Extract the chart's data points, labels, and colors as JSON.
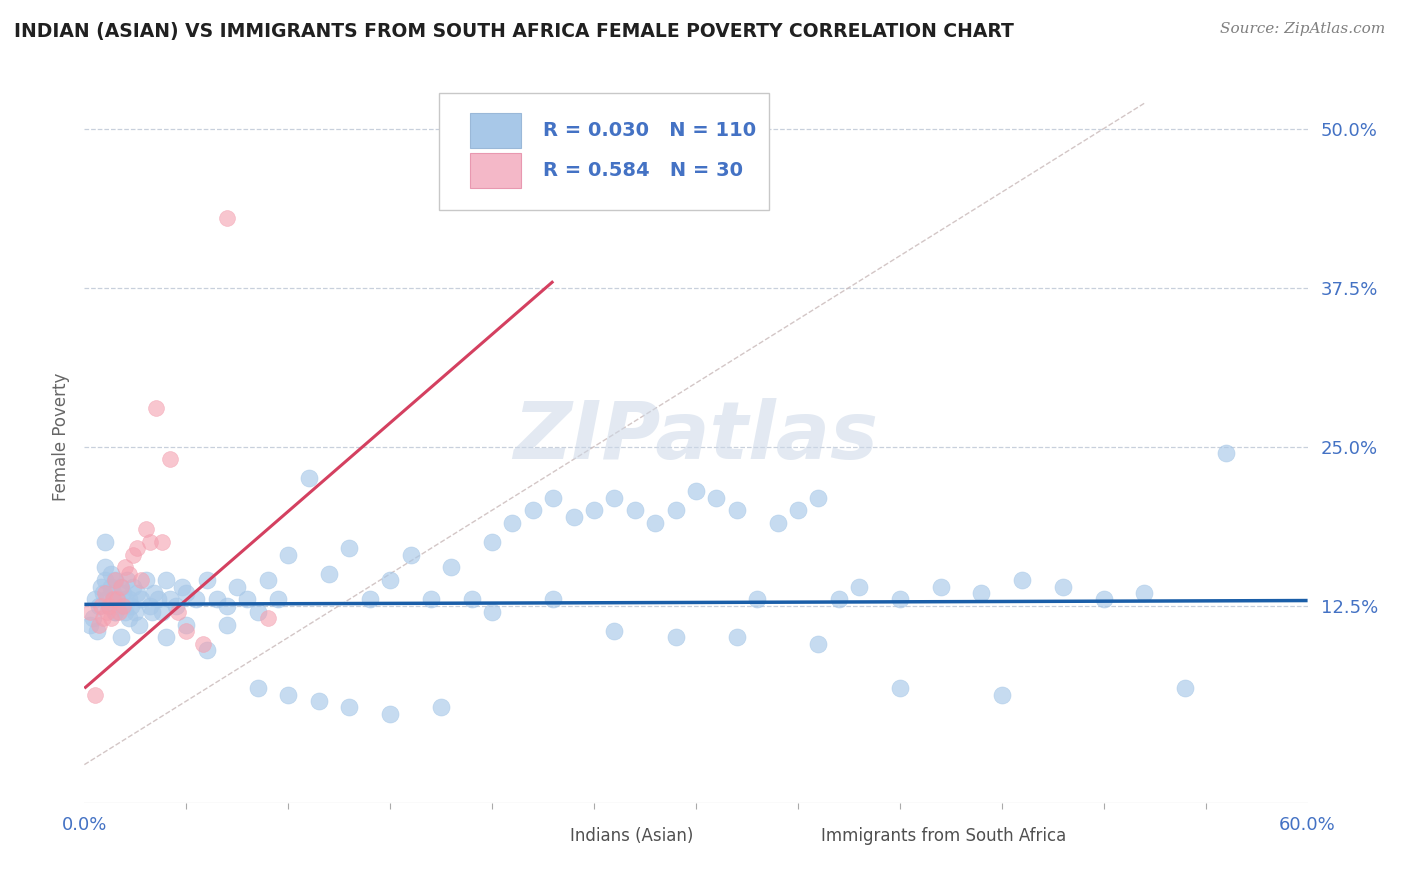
{
  "title": "INDIAN (ASIAN) VS IMMIGRANTS FROM SOUTH AFRICA FEMALE POVERTY CORRELATION CHART",
  "source_text": "Source: ZipAtlas.com",
  "ylabel": "Female Poverty",
  "xlim": [
    0.0,
    0.6
  ],
  "ylim": [
    -0.03,
    0.545
  ],
  "yticks": [
    0.125,
    0.25,
    0.375,
    0.5
  ],
  "ytick_labels": [
    "12.5%",
    "25.0%",
    "37.5%",
    "50.0%"
  ],
  "xticks": [
    0.0,
    0.6
  ],
  "xtick_labels": [
    "0.0%",
    "60.0%"
  ],
  "legend_r1": "R = 0.030",
  "legend_n1": "N = 110",
  "legend_r2": "R = 0.584",
  "legend_n2": "N = 30",
  "color_blue_scatter": "#a8c8e8",
  "color_pink_scatter": "#f4a0b0",
  "color_blue_square": "#a8c8e8",
  "color_pink_square": "#f4b8c8",
  "color_blue_line": "#1a5ea8",
  "color_pink_line": "#d44060",
  "color_diag_line": "#c8b8b8",
  "color_grid": "#c8d0dc",
  "color_title": "#202020",
  "color_source": "#808080",
  "color_tick_labels": "#4472c4",
  "color_legend_text": "#4472c4",
  "color_legend_text2": "#4472c4",
  "color_bottom_legend_text": "#505050",
  "watermark_color": "#ccd8e8",
  "blue_scatter_x": [
    0.005,
    0.007,
    0.008,
    0.009,
    0.01,
    0.01,
    0.01,
    0.011,
    0.012,
    0.013,
    0.013,
    0.014,
    0.015,
    0.015,
    0.016,
    0.017,
    0.018,
    0.019,
    0.02,
    0.02,
    0.021,
    0.022,
    0.023,
    0.024,
    0.025,
    0.026,
    0.028,
    0.03,
    0.032,
    0.034,
    0.036,
    0.038,
    0.04,
    0.042,
    0.045,
    0.048,
    0.05,
    0.055,
    0.06,
    0.065,
    0.07,
    0.075,
    0.08,
    0.085,
    0.09,
    0.095,
    0.1,
    0.11,
    0.12,
    0.13,
    0.14,
    0.15,
    0.16,
    0.17,
    0.18,
    0.19,
    0.2,
    0.21,
    0.22,
    0.23,
    0.24,
    0.25,
    0.26,
    0.27,
    0.28,
    0.29,
    0.3,
    0.31,
    0.32,
    0.33,
    0.34,
    0.35,
    0.36,
    0.37,
    0.38,
    0.4,
    0.42,
    0.44,
    0.46,
    0.48,
    0.5,
    0.52,
    0.54,
    0.56,
    0.003,
    0.004,
    0.006,
    0.015,
    0.018,
    0.022,
    0.027,
    0.033,
    0.04,
    0.05,
    0.06,
    0.07,
    0.085,
    0.1,
    0.115,
    0.13,
    0.15,
    0.175,
    0.2,
    0.23,
    0.26,
    0.29,
    0.32,
    0.36,
    0.4,
    0.45
  ],
  "blue_scatter_y": [
    0.13,
    0.125,
    0.14,
    0.135,
    0.145,
    0.155,
    0.175,
    0.13,
    0.125,
    0.14,
    0.15,
    0.135,
    0.12,
    0.145,
    0.13,
    0.125,
    0.14,
    0.135,
    0.12,
    0.13,
    0.145,
    0.13,
    0.125,
    0.14,
    0.12,
    0.135,
    0.13,
    0.145,
    0.125,
    0.135,
    0.13,
    0.12,
    0.145,
    0.13,
    0.125,
    0.14,
    0.135,
    0.13,
    0.145,
    0.13,
    0.125,
    0.14,
    0.13,
    0.12,
    0.145,
    0.13,
    0.165,
    0.225,
    0.15,
    0.17,
    0.13,
    0.145,
    0.165,
    0.13,
    0.155,
    0.13,
    0.175,
    0.19,
    0.2,
    0.21,
    0.195,
    0.2,
    0.21,
    0.2,
    0.19,
    0.2,
    0.215,
    0.21,
    0.2,
    0.13,
    0.19,
    0.2,
    0.21,
    0.13,
    0.14,
    0.13,
    0.14,
    0.135,
    0.145,
    0.14,
    0.13,
    0.135,
    0.06,
    0.245,
    0.11,
    0.115,
    0.105,
    0.12,
    0.1,
    0.115,
    0.11,
    0.12,
    0.1,
    0.11,
    0.09,
    0.11,
    0.06,
    0.055,
    0.05,
    0.045,
    0.04,
    0.045,
    0.12,
    0.13,
    0.105,
    0.1,
    0.1,
    0.095,
    0.06,
    0.055
  ],
  "pink_scatter_x": [
    0.003,
    0.005,
    0.007,
    0.008,
    0.009,
    0.01,
    0.011,
    0.012,
    0.013,
    0.014,
    0.015,
    0.016,
    0.017,
    0.018,
    0.019,
    0.02,
    0.022,
    0.024,
    0.026,
    0.028,
    0.03,
    0.032,
    0.035,
    0.038,
    0.042,
    0.046,
    0.05,
    0.058,
    0.07,
    0.09
  ],
  "pink_scatter_y": [
    0.12,
    0.055,
    0.11,
    0.125,
    0.115,
    0.135,
    0.12,
    0.125,
    0.115,
    0.13,
    0.145,
    0.13,
    0.12,
    0.14,
    0.125,
    0.155,
    0.15,
    0.165,
    0.17,
    0.145,
    0.185,
    0.175,
    0.28,
    0.175,
    0.24,
    0.12,
    0.105,
    0.095,
    0.43,
    0.115
  ],
  "blue_line_x": [
    0.0,
    0.6
  ],
  "blue_line_y": [
    0.126,
    0.129
  ],
  "pink_line_x": [
    0.0,
    0.23
  ],
  "pink_line_y": [
    0.06,
    0.38
  ],
  "diag_line_x": [
    0.0,
    0.52
  ],
  "diag_line_y": [
    0.0,
    0.52
  ]
}
